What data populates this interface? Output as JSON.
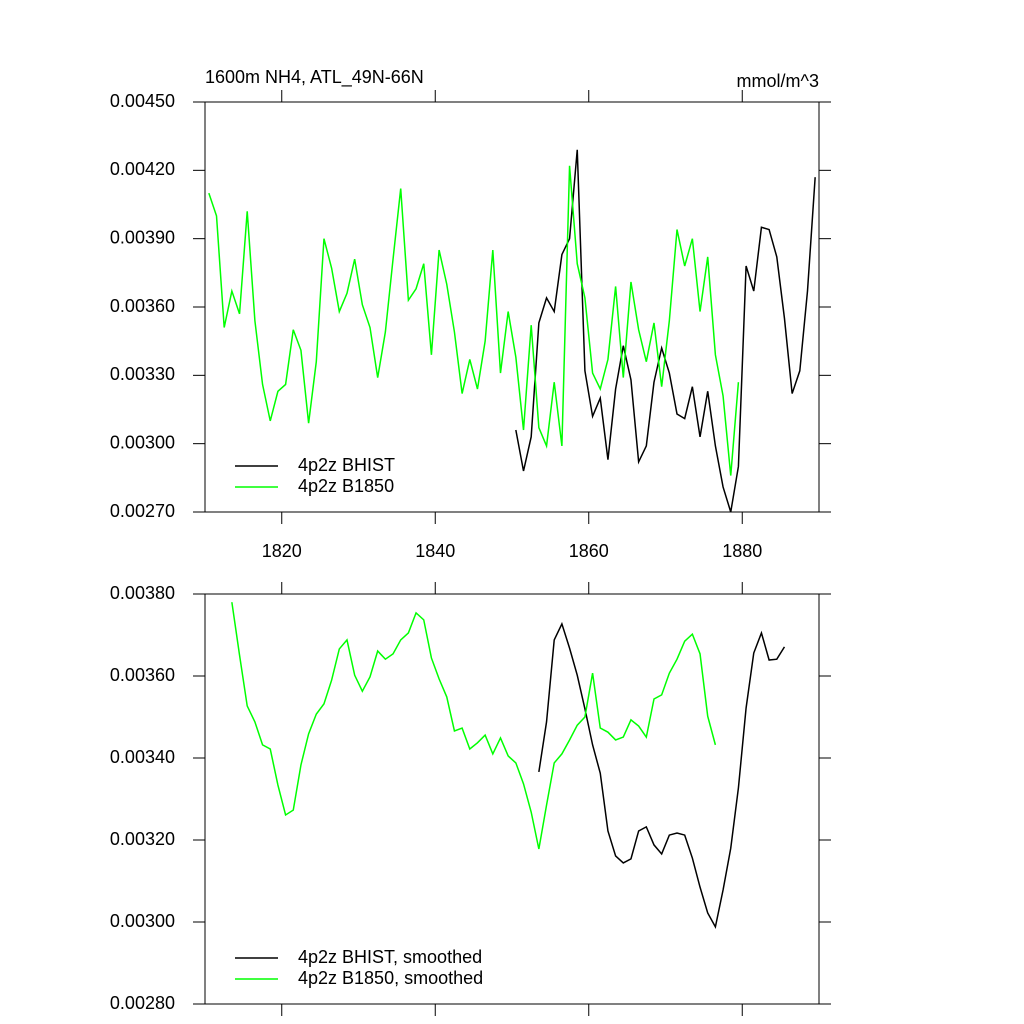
{
  "chart_data": [
    {
      "type": "line",
      "title": "1600m NH4, ATL_49N-66N",
      "units": "mmol/m^3",
      "xlim": [
        1810,
        1890
      ],
      "xticks": [
        1820,
        1840,
        1860,
        1880
      ],
      "ylim": [
        0.0027,
        0.0045
      ],
      "yticks": [
        {
          "value": 0.0027,
          "label": "0.00270"
        },
        {
          "value": 0.003,
          "label": "0.00300"
        },
        {
          "value": 0.0033,
          "label": "0.00330"
        },
        {
          "value": 0.0036,
          "label": "0.00360"
        },
        {
          "value": 0.0039,
          "label": "0.00390"
        },
        {
          "value": 0.0042,
          "label": "0.00420"
        },
        {
          "value": 0.0045,
          "label": "0.00450"
        }
      ],
      "legend": "lower left",
      "series": [
        {
          "name": "4p2z BHIST",
          "color": "#000000",
          "x": [
            1850.5,
            1851.5,
            1852.5,
            1853.5,
            1854.5,
            1855.5,
            1856.5,
            1857.5,
            1858.5,
            1859.5,
            1860.5,
            1861.5,
            1862.5,
            1863.5,
            1864.5,
            1865.5,
            1866.5,
            1867.5,
            1868.5,
            1869.5,
            1870.5,
            1871.5,
            1872.5,
            1873.5,
            1874.5,
            1875.5,
            1876.5,
            1877.5,
            1878.5,
            1879.5,
            1880.5,
            1881.5,
            1882.5,
            1883.5,
            1884.5,
            1885.5,
            1886.5,
            1887.5,
            1888.5,
            1889.5
          ],
          "values": [
            0.00306,
            0.00288,
            0.00303,
            0.00353,
            0.00364,
            0.00358,
            0.00383,
            0.0039,
            0.00429,
            0.00332,
            0.00312,
            0.0032,
            0.00293,
            0.00324,
            0.00343,
            0.00328,
            0.00292,
            0.00299,
            0.00327,
            0.00342,
            0.00331,
            0.00313,
            0.00311,
            0.00325,
            0.00303,
            0.00323,
            0.00299,
            0.00281,
            0.0027,
            0.0029,
            0.00378,
            0.00367,
            0.00395,
            0.00394,
            0.00382,
            0.00355,
            0.00322,
            0.00332,
            0.00367,
            0.00417
          ]
        },
        {
          "name": "4p2z B1850",
          "color": "#00ff00",
          "x": [
            1810.5,
            1811.5,
            1812.5,
            1813.5,
            1814.5,
            1815.5,
            1816.5,
            1817.5,
            1818.5,
            1819.5,
            1820.5,
            1821.5,
            1822.5,
            1823.5,
            1824.5,
            1825.5,
            1826.5,
            1827.5,
            1828.5,
            1829.5,
            1830.5,
            1831.5,
            1832.5,
            1833.5,
            1834.5,
            1835.5,
            1836.5,
            1837.5,
            1838.5,
            1839.5,
            1840.5,
            1841.5,
            1842.5,
            1843.5,
            1844.5,
            1845.5,
            1846.5,
            1847.5,
            1848.5,
            1849.5,
            1850.5,
            1851.5,
            1852.5,
            1853.5,
            1854.5,
            1855.5,
            1856.5,
            1857.5,
            1858.5,
            1859.5,
            1860.5,
            1861.5,
            1862.5,
            1863.5,
            1864.5,
            1865.5,
            1866.5,
            1867.5,
            1868.5,
            1869.5,
            1870.5,
            1871.5,
            1872.5,
            1873.5,
            1874.5,
            1875.5,
            1876.5,
            1877.5,
            1878.5,
            1879.5
          ],
          "values": [
            0.0041,
            0.004,
            0.00351,
            0.00367,
            0.00357,
            0.00402,
            0.00354,
            0.00326,
            0.0031,
            0.00323,
            0.00326,
            0.0035,
            0.00341,
            0.00309,
            0.00336,
            0.0039,
            0.00377,
            0.00358,
            0.00366,
            0.00381,
            0.00361,
            0.00351,
            0.00329,
            0.00349,
            0.00381,
            0.00412,
            0.00363,
            0.00368,
            0.00379,
            0.00339,
            0.00385,
            0.0037,
            0.00349,
            0.00322,
            0.00337,
            0.00324,
            0.00345,
            0.00385,
            0.00331,
            0.00358,
            0.00338,
            0.00306,
            0.00352,
            0.00307,
            0.00299,
            0.00327,
            0.00299,
            0.00422,
            0.00379,
            0.00364,
            0.00331,
            0.00324,
            0.00337,
            0.00369,
            0.00329,
            0.00371,
            0.0035,
            0.00336,
            0.00353,
            0.00325,
            0.00354,
            0.00394,
            0.00378,
            0.0039,
            0.00358,
            0.00382,
            0.00339,
            0.00321,
            0.00286,
            0.00327
          ]
        }
      ]
    },
    {
      "type": "line",
      "xlim": [
        1810,
        1890
      ],
      "xticks": [
        1820,
        1840,
        1860,
        1880
      ],
      "ylim": [
        0.0028,
        0.0038
      ],
      "yticks": [
        {
          "value": 0.0028,
          "label": "0.00280"
        },
        {
          "value": 0.003,
          "label": "0.00300"
        },
        {
          "value": 0.0032,
          "label": "0.00320"
        },
        {
          "value": 0.0034,
          "label": "0.00340"
        },
        {
          "value": 0.0036,
          "label": "0.00360"
        },
        {
          "value": 0.0038,
          "label": "0.00380"
        }
      ],
      "legend": "lower left",
      "series": [
        {
          "name": "4p2z BHIST, smoothed",
          "color": "#000000",
          "x": [
            1853.5,
            1854.5,
            1855.5,
            1856.5,
            1857.5,
            1858.5,
            1859.5,
            1860.5,
            1861.5,
            1862.5,
            1863.5,
            1864.5,
            1865.5,
            1866.5,
            1867.5,
            1868.5,
            1869.5,
            1870.5,
            1871.5,
            1872.5,
            1873.5,
            1874.5,
            1875.5,
            1876.5,
            1877.5,
            1878.5,
            1879.5,
            1880.5,
            1881.5,
            1882.5,
            1883.5,
            1884.5,
            1885.5
          ],
          "values": [
            0.003366,
            0.003488,
            0.003688,
            0.003727,
            0.003668,
            0.003602,
            0.00352,
            0.003432,
            0.003363,
            0.003222,
            0.003161,
            0.003144,
            0.003154,
            0.003222,
            0.003232,
            0.003188,
            0.003166,
            0.003212,
            0.003217,
            0.003212,
            0.003156,
            0.003085,
            0.003022,
            0.002988,
            0.003078,
            0.00318,
            0.003327,
            0.003522,
            0.003656,
            0.003705,
            0.003639,
            0.003641,
            0.003671
          ]
        },
        {
          "name": "4p2z B1850, smoothed",
          "color": "#00ff00",
          "x": [
            1813.5,
            1814.5,
            1815.5,
            1816.5,
            1817.5,
            1818.5,
            1819.5,
            1820.5,
            1821.5,
            1822.5,
            1823.5,
            1824.5,
            1825.5,
            1826.5,
            1827.5,
            1828.5,
            1829.5,
            1830.5,
            1831.5,
            1832.5,
            1833.5,
            1834.5,
            1835.5,
            1836.5,
            1837.5,
            1838.5,
            1839.5,
            1840.5,
            1841.5,
            1842.5,
            1843.5,
            1844.5,
            1845.5,
            1846.5,
            1847.5,
            1848.5,
            1849.5,
            1850.5,
            1851.5,
            1852.5,
            1853.5,
            1854.5,
            1855.5,
            1856.5,
            1857.5,
            1858.5,
            1859.5,
            1860.5,
            1861.5,
            1862.5,
            1863.5,
            1864.5,
            1865.5,
            1866.5,
            1867.5,
            1868.5,
            1869.5,
            1870.5,
            1871.5,
            1872.5,
            1873.5,
            1874.5,
            1875.5,
            1876.5
          ],
          "values": [
            0.00378,
            0.003651,
            0.003527,
            0.003488,
            0.003432,
            0.003422,
            0.003334,
            0.003261,
            0.003273,
            0.003383,
            0.003459,
            0.003507,
            0.003532,
            0.00359,
            0.003666,
            0.003688,
            0.003602,
            0.003563,
            0.003598,
            0.003661,
            0.003641,
            0.003654,
            0.003688,
            0.003705,
            0.003754,
            0.003737,
            0.003644,
            0.003593,
            0.003549,
            0.003466,
            0.003473,
            0.003422,
            0.003437,
            0.003456,
            0.00341,
            0.003449,
            0.003405,
            0.003388,
            0.003337,
            0.003268,
            0.003178,
            0.003285,
            0.003388,
            0.00341,
            0.003444,
            0.00348,
            0.0035,
            0.003607,
            0.003473,
            0.003463,
            0.003444,
            0.003451,
            0.003493,
            0.003478,
            0.003451,
            0.003544,
            0.003554,
            0.003607,
            0.003641,
            0.003685,
            0.003702,
            0.003654,
            0.003502,
            0.003432
          ]
        }
      ]
    }
  ]
}
